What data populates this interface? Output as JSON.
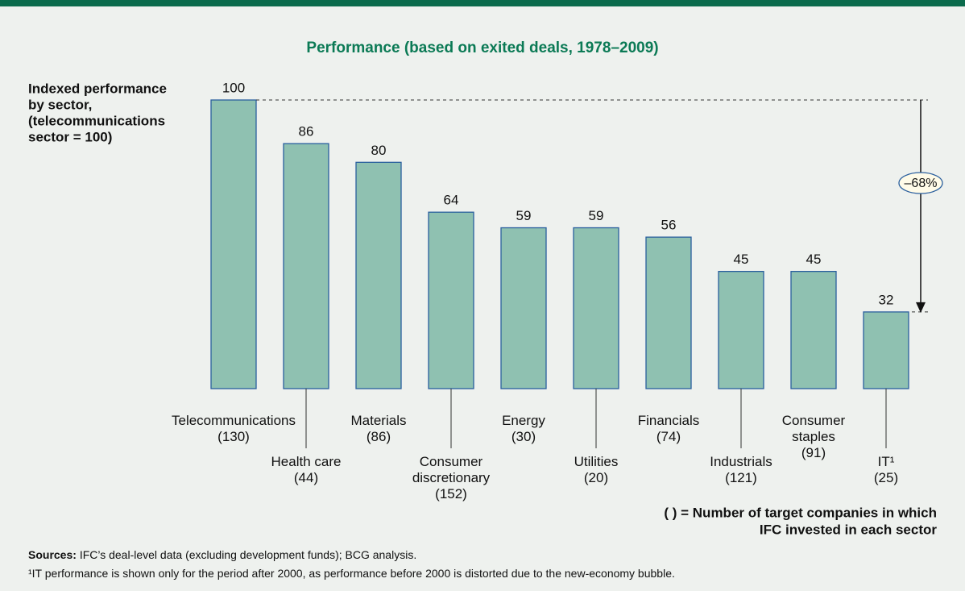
{
  "chart_data": {
    "type": "bar",
    "title": "Performance (based on exited deals, 1978–2009)",
    "y_label_lines": [
      "Indexed performance",
      "by sector,",
      "(telecommunications",
      "sector = 100)"
    ],
    "categories": [
      "Telecommunications",
      "Health care",
      "Materials",
      "Consumer discretionary",
      "Energy",
      "Utilities",
      "Financials",
      "Industrials",
      "Consumer staples",
      "IT¹"
    ],
    "company_counts": [
      130,
      44,
      86,
      152,
      30,
      20,
      74,
      121,
      91,
      25
    ],
    "company_count_labels": [
      "(130)",
      "(44)",
      "(86)",
      "(152)",
      "(30)",
      "(20)",
      "(74)",
      "(121)",
      "(91)",
      "(25)"
    ],
    "values": [
      100,
      86,
      80,
      64,
      59,
      59,
      56,
      45,
      45,
      32
    ],
    "color": "#8fc1b1",
    "edge_color": "#2a5f9e",
    "ylim": [
      7.4,
      100
    ],
    "annotation": "–68%",
    "legend_note_lines": [
      "( ) = Number of target companies in which",
      "IFC invested in each sector"
    ],
    "sources_label": "Sources:",
    "sources_text": "IFC’s deal-level data (excluding development funds); BCG analysis.",
    "footnote": "¹IT performance is shown only for the period after 2000, as performance before 2000 is distorted due to the new-economy bubble."
  }
}
